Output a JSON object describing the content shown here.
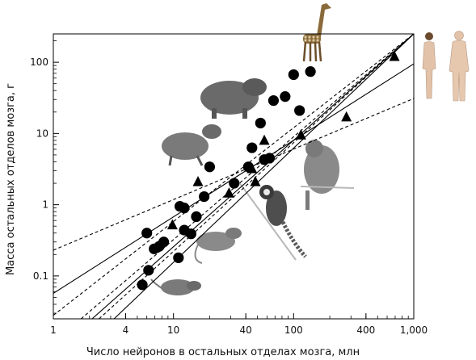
{
  "chart_data": {
    "type": "scatter",
    "xlabel": "Число нейронов в остальных отделах мозга, млн",
    "ylabel": "Масса остальных отделов мозга, г",
    "x_scale": "log",
    "y_scale": "log",
    "xlim": [
      1,
      1000
    ],
    "ylim": [
      0.025,
      250
    ],
    "x_ticks": [
      {
        "value": 1,
        "label": "1"
      },
      {
        "value": 4,
        "label": "4"
      },
      {
        "value": 10,
        "label": "10"
      },
      {
        "value": 40,
        "label": "40"
      },
      {
        "value": 100,
        "label": "100"
      },
      {
        "value": 400,
        "label": "400"
      },
      {
        "value": 1000,
        "label": "1,000"
      }
    ],
    "y_ticks": [
      {
        "value": 0.1,
        "label": "0.1"
      },
      {
        "value": 1,
        "label": "1"
      },
      {
        "value": 10,
        "label": "10"
      },
      {
        "value": 100,
        "label": "100"
      }
    ],
    "grid": false,
    "legend": "none",
    "series": [
      {
        "marker": "circle",
        "color": "#000000",
        "points": [
          [
            5.5,
            0.075
          ],
          [
            6.2,
            0.12
          ],
          [
            6.0,
            0.4
          ],
          [
            6.9,
            0.24
          ],
          [
            7.6,
            0.26
          ],
          [
            8.3,
            0.3
          ],
          [
            11.0,
            0.18
          ],
          [
            11.3,
            0.95
          ],
          [
            12.3,
            0.9
          ],
          [
            12.3,
            0.44
          ],
          [
            14.0,
            0.39
          ],
          [
            15.5,
            0.68
          ],
          [
            18.0,
            1.3
          ],
          [
            20.0,
            3.4
          ],
          [
            32.0,
            2.0
          ],
          [
            42.0,
            3.4
          ],
          [
            45.0,
            6.3
          ],
          [
            53.0,
            14.0
          ],
          [
            57.0,
            4.3
          ],
          [
            63.0,
            4.5
          ],
          [
            68.0,
            29.0
          ],
          [
            85.0,
            33.0
          ],
          [
            100.0,
            67.0
          ],
          [
            112.0,
            21.0
          ],
          [
            138.0,
            74.0
          ]
        ]
      },
      {
        "marker": "triangle",
        "color": "#000000",
        "points": [
          [
            9.8,
            0.52
          ],
          [
            16.0,
            2.1
          ],
          [
            29.0,
            1.45
          ],
          [
            45.0,
            3.2
          ],
          [
            48.0,
            2.1
          ],
          [
            57.0,
            8.0
          ],
          [
            115.0,
            9.5
          ],
          [
            275.0,
            17.0
          ],
          [
            690.0,
            120.0
          ]
        ]
      }
    ],
    "lines": [
      {
        "style": "solid",
        "x": [
          1,
          1000
        ],
        "y": [
          0.057,
          95
        ]
      },
      {
        "style": "solid",
        "x": [
          2.1,
          1000
        ],
        "y": [
          0.025,
          250
        ]
      },
      {
        "style": "solid",
        "x": [
          3.2,
          1000
        ],
        "y": [
          0.025,
          250
        ]
      },
      {
        "style": "dashed",
        "x": [
          1,
          1000
        ],
        "y": [
          0.23,
          31
        ]
      },
      {
        "style": "dashed",
        "x": [
          1,
          1000
        ],
        "y": [
          0.028,
          250
        ]
      },
      {
        "style": "dashed",
        "x": [
          1.7,
          1000
        ],
        "y": [
          0.025,
          250
        ]
      },
      {
        "style": "dashed",
        "x": [
          2.4,
          1000
        ],
        "y": [
          0.025,
          250
        ]
      }
    ],
    "illustrations": [
      {
        "icon": "giraffe-icon"
      },
      {
        "icon": "humans-icon"
      },
      {
        "icon": "capybara-icon"
      },
      {
        "icon": "agouti-icon"
      },
      {
        "icon": "marmoset-icon"
      },
      {
        "icon": "macaque-icon"
      },
      {
        "icon": "rat-icon"
      },
      {
        "icon": "mouse-icon"
      }
    ]
  }
}
